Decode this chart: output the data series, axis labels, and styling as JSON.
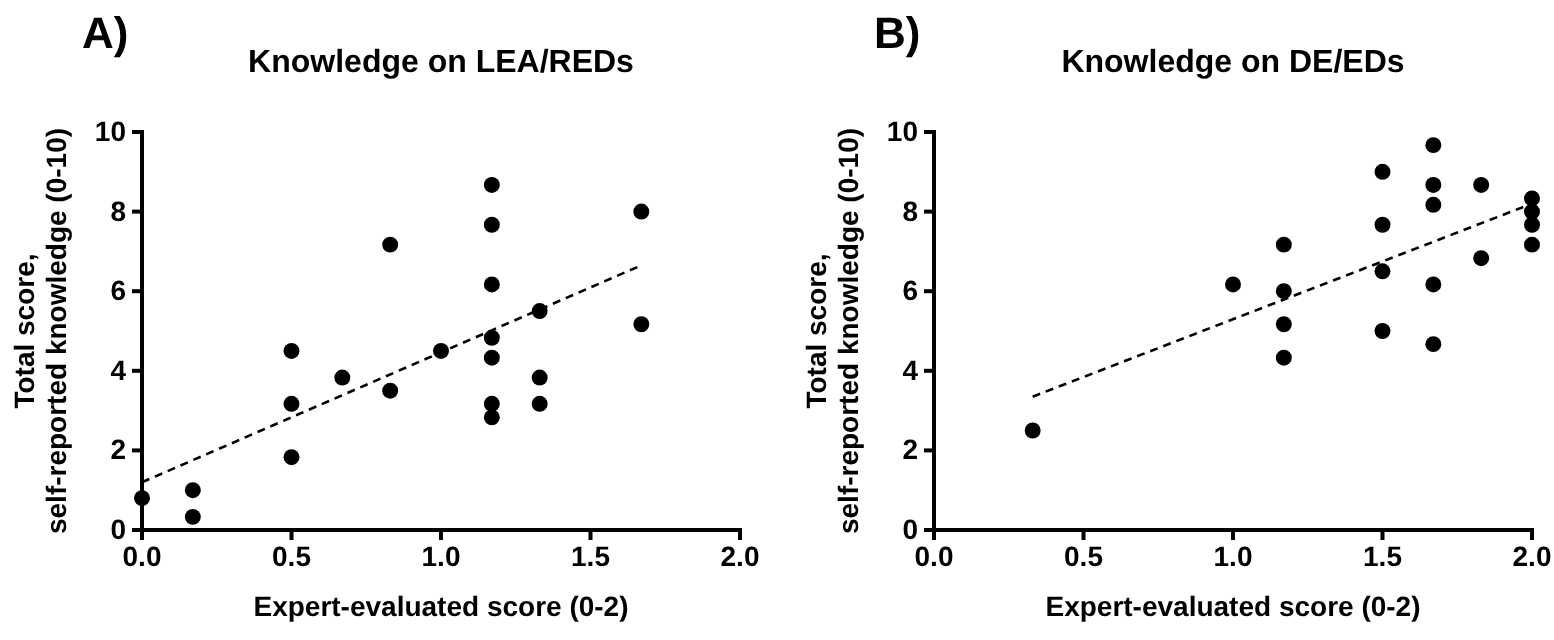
{
  "chart_data": [
    {
      "type": "scatter",
      "title": "Knowledge on LEA/REDs",
      "xlabel": "Expert-evaluated score (0-2)",
      "ylabel": "Total score,\nself-reported knowledge (0-10)",
      "annotations": [
        "A)"
      ],
      "xlim": [
        0,
        2
      ],
      "xticks": [
        {
          "value": 0,
          "label": "0.0"
        },
        {
          "value": 0.5,
          "label": "0.5"
        },
        {
          "value": 1,
          "label": "1.0"
        },
        {
          "value": 1.5,
          "label": "1.5"
        },
        {
          "value": 2,
          "label": "2.0"
        }
      ],
      "ylim": [
        0,
        10
      ],
      "yticks": [
        0,
        2,
        4,
        6,
        8,
        10
      ],
      "series": [
        {
          "marker": "circle",
          "color": "#000000",
          "x": [
            0,
            0.17,
            0.17,
            0.5,
            0.5,
            0.5,
            0.67,
            0.83,
            0.83,
            1,
            1.17,
            1.17,
            1.17,
            1.17,
            1.17,
            1.17,
            1.17,
            1.33,
            1.33,
            1.33,
            1.67,
            1.67
          ],
          "values": [
            0.8,
            1,
            0.33,
            4.5,
            3.17,
            1.83,
            3.83,
            7.17,
            3.5,
            4.5,
            8.67,
            7.67,
            6.17,
            4.83,
            4.33,
            3.17,
            2.83,
            5.5,
            3.83,
            3.17,
            8,
            5.17
          ]
        },
        {
          "type": "line",
          "color": "#000000",
          "line_style": "dashed",
          "x": [
            0,
            1.67
          ],
          "values": [
            1.2,
            6.65
          ]
        }
      ]
    },
    {
      "type": "scatter",
      "title": "Knowledge on DE/EDs",
      "xlabel": "Expert-evaluated score (0-2)",
      "ylabel": "Total score,\nself-reported knowledge (0-10)",
      "annotations": [
        "B)"
      ],
      "xlim": [
        0,
        2
      ],
      "xticks": [
        {
          "value": 0,
          "label": "0.0"
        },
        {
          "value": 0.5,
          "label": "0.5"
        },
        {
          "value": 1,
          "label": "1.0"
        },
        {
          "value": 1.5,
          "label": "1.5"
        },
        {
          "value": 2,
          "label": "2.0"
        }
      ],
      "ylim": [
        0,
        10
      ],
      "yticks": [
        0,
        2,
        4,
        6,
        8,
        10
      ],
      "series": [
        {
          "marker": "circle",
          "color": "#000000",
          "x": [
            0.33,
            1,
            1.17,
            1.17,
            1.17,
            1.17,
            1.5,
            1.5,
            1.5,
            1.5,
            1.67,
            1.67,
            1.67,
            1.67,
            1.67,
            1.83,
            1.83,
            2,
            2,
            2,
            2
          ],
          "values": [
            2.5,
            6.17,
            7.17,
            6,
            5.17,
            4.33,
            9,
            7.67,
            6.5,
            5,
            9.67,
            8.67,
            8.17,
            6.17,
            4.67,
            8.67,
            6.83,
            8.33,
            8,
            7.67,
            7.17
          ]
        },
        {
          "type": "line",
          "color": "#000000",
          "line_style": "dashed",
          "x": [
            0.33,
            2
          ],
          "values": [
            3.35,
            8.2
          ]
        }
      ]
    }
  ]
}
